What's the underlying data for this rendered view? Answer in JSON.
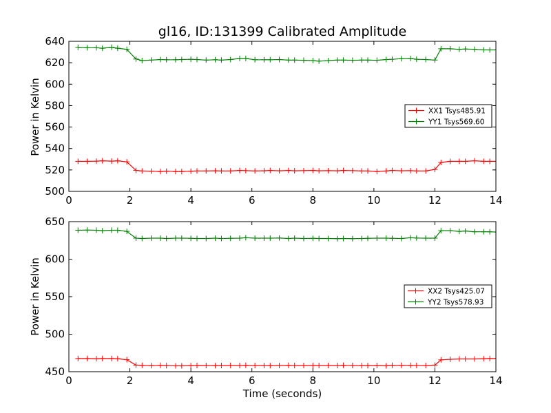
{
  "chart_data": [
    {
      "type": "line",
      "title": "gl16, ID:131399 Calibrated Amplitude",
      "xlabel": "",
      "ylabel": "Power in Kelvin",
      "xlim": [
        0,
        14
      ],
      "ylim": [
        500,
        640
      ],
      "xticks": [
        "0",
        "2",
        "4",
        "6",
        "8",
        "10",
        "12",
        "14"
      ],
      "yticks": [
        "500",
        "520",
        "540",
        "560",
        "580",
        "600",
        "620",
        "640"
      ],
      "grid": false,
      "legend_position": "center-right",
      "x": [
        0.3,
        0.6,
        0.9,
        1.1,
        1.4,
        1.6,
        1.9,
        2.2,
        2.4,
        2.7,
        3.0,
        3.2,
        3.5,
        3.7,
        4.0,
        4.2,
        4.5,
        4.8,
        5.0,
        5.3,
        5.6,
        5.8,
        6.1,
        6.4,
        6.6,
        6.9,
        7.2,
        7.4,
        7.7,
        8.0,
        8.2,
        8.5,
        8.8,
        9.0,
        9.3,
        9.6,
        9.8,
        10.1,
        10.4,
        10.6,
        10.9,
        11.2,
        11.4,
        11.7,
        12.0,
        12.2,
        12.5,
        12.8,
        13.0,
        13.3,
        13.6,
        13.8,
        14.1
      ],
      "series": [
        {
          "name": "XX1 Tsys485.91",
          "color": "#ff0000",
          "values": [
            528,
            528,
            528.2,
            528.5,
            528.2,
            528.5,
            527.5,
            519.5,
            519,
            518.8,
            518.5,
            518.8,
            518.5,
            518.5,
            518.8,
            519,
            519,
            519.2,
            519,
            519,
            519.5,
            519.3,
            519,
            519.2,
            519.5,
            519.2,
            519.5,
            519.2,
            519.3,
            519.5,
            519.2,
            519.3,
            519.2,
            519.5,
            519.3,
            519,
            519,
            518.5,
            519,
            519.5,
            519.2,
            519.3,
            519,
            519,
            520.5,
            527,
            528,
            528,
            528,
            528.5,
            528,
            528,
            528
          ]
        },
        {
          "name": "YY1 Tsys569.60",
          "color": "#008000",
          "values": [
            634.5,
            634,
            634,
            633.5,
            634.5,
            633.5,
            632.5,
            623.5,
            622,
            622.5,
            623,
            622.8,
            622.8,
            623,
            623.2,
            623,
            622.5,
            622.8,
            622.5,
            623,
            624,
            624,
            622.8,
            622.8,
            622.8,
            623,
            622.5,
            622.5,
            622.3,
            622,
            621.5,
            622,
            622.5,
            622.5,
            622.3,
            622.5,
            622.5,
            622.3,
            623,
            623.2,
            623.8,
            624,
            623.2,
            623,
            622.5,
            633,
            633,
            632.5,
            632.8,
            632.5,
            632,
            632,
            632
          ]
        }
      ]
    },
    {
      "type": "line",
      "title": "",
      "xlabel": "Time (seconds)",
      "ylabel": "Power in Kelvin",
      "xlim": [
        0,
        14
      ],
      "ylim": [
        450,
        650
      ],
      "xticks": [
        "0",
        "2",
        "4",
        "6",
        "8",
        "10",
        "12",
        "14"
      ],
      "yticks": [
        "450",
        "500",
        "550",
        "600",
        "650"
      ],
      "grid": false,
      "legend_position": "center-right",
      "x": [
        0.3,
        0.6,
        0.9,
        1.1,
        1.4,
        1.6,
        1.9,
        2.2,
        2.4,
        2.7,
        3.0,
        3.2,
        3.5,
        3.7,
        4.0,
        4.2,
        4.5,
        4.8,
        5.0,
        5.3,
        5.6,
        5.8,
        6.1,
        6.4,
        6.6,
        6.9,
        7.2,
        7.4,
        7.7,
        8.0,
        8.2,
        8.5,
        8.8,
        9.0,
        9.3,
        9.6,
        9.8,
        10.1,
        10.4,
        10.6,
        10.9,
        11.2,
        11.4,
        11.7,
        12.0,
        12.2,
        12.5,
        12.8,
        13.0,
        13.3,
        13.6,
        13.8,
        14.1
      ],
      "series": [
        {
          "name": "XX2 Tsys425.07",
          "color": "#ff0000",
          "values": [
            467.5,
            467.5,
            467.3,
            467.5,
            467.5,
            467.3,
            466,
            458.8,
            458.5,
            458,
            458.5,
            458,
            457.8,
            457.8,
            458,
            458.3,
            458.2,
            458,
            458.2,
            458.3,
            458.3,
            458.5,
            458.2,
            458.3,
            458,
            458.3,
            458.5,
            458.2,
            458.3,
            458.3,
            458.2,
            458.3,
            458.2,
            458.5,
            458.3,
            458,
            458,
            458.2,
            457.8,
            458.5,
            458.5,
            458.5,
            458.3,
            458.2,
            458.8,
            465.8,
            466.5,
            467,
            467,
            467,
            467.3,
            467.5,
            467.5
          ]
        },
        {
          "name": "YY2 Tsys578.93",
          "color": "#008000",
          "values": [
            638.5,
            638.8,
            638.5,
            638,
            638.5,
            638.5,
            637,
            628,
            627.5,
            628,
            628,
            627.5,
            628,
            628,
            627.8,
            627.5,
            627.5,
            628,
            627.5,
            627.8,
            628,
            628.5,
            628,
            628,
            628,
            628.2,
            627.5,
            628,
            627.5,
            627.8,
            627.5,
            627.5,
            627.3,
            627.5,
            627.3,
            627.5,
            627.8,
            628,
            628,
            627.8,
            627.5,
            628.5,
            628.2,
            628,
            628,
            638,
            638,
            637,
            637.5,
            636.5,
            636.5,
            636.5,
            636
          ]
        }
      ]
    }
  ]
}
